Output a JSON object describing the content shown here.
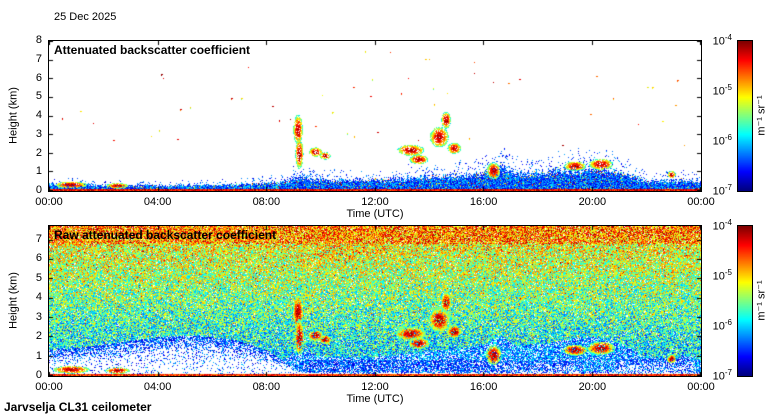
{
  "header": {
    "date": "25 Dec 2025"
  },
  "footer": {
    "station": "Jarvselja CL31 ceilometer"
  },
  "colorbar": {
    "base": "10",
    "exponents": [
      "-4",
      "-5",
      "-6",
      "-7"
    ],
    "units": "m⁻¹ sr⁻¹",
    "colormap": "jet",
    "scale": "log10",
    "value_range": [
      1e-07,
      0.0001
    ]
  },
  "chart_data": [
    {
      "type": "heatmap",
      "title": "Attenuated backscatter coefficient",
      "xlabel": "Time (UTC)",
      "ylabel": "Height (km)",
      "units": "m⁻¹ sr⁻¹",
      "colormap": "jet",
      "x_ticks": [
        "00:00",
        "04:00",
        "08:00",
        "12:00",
        "16:00",
        "20:00",
        "00:00"
      ],
      "x_range_hours": [
        0,
        24
      ],
      "y_ticks": [
        8,
        7,
        6,
        5,
        4,
        3,
        2,
        1,
        0
      ],
      "ylim_km": [
        0,
        8
      ],
      "features": {
        "seed": 42,
        "boundary_layer_top_km": [
          [
            0,
            0.4
          ],
          [
            1,
            0.35
          ],
          [
            2,
            0.3
          ],
          [
            3,
            0.3
          ],
          [
            4,
            0.3
          ],
          [
            5,
            0.3
          ],
          [
            6,
            0.3
          ],
          [
            7,
            0.35
          ],
          [
            8,
            0.4
          ],
          [
            8.6,
            0.5
          ],
          [
            9,
            0.7
          ],
          [
            9.4,
            0.8
          ],
          [
            10,
            0.6
          ],
          [
            11,
            0.6
          ],
          [
            12,
            0.6
          ],
          [
            13,
            0.7
          ],
          [
            14,
            0.8
          ],
          [
            15,
            0.85
          ],
          [
            16,
            1.0
          ],
          [
            16.6,
            1.3
          ],
          [
            17.2,
            0.95
          ],
          [
            18,
            1.0
          ],
          [
            19,
            1.15
          ],
          [
            20,
            1.25
          ],
          [
            20.7,
            1.15
          ],
          [
            21.3,
            0.9
          ],
          [
            22,
            0.55
          ],
          [
            23,
            0.55
          ],
          [
            23.5,
            0.6
          ],
          [
            24,
            0.45
          ]
        ],
        "cloud_echoes": [
          {
            "t": 0.8,
            "h": 0.35,
            "w": 1.2,
            "dh": 0.35
          },
          {
            "t": 2.5,
            "h": 0.3,
            "w": 0.8,
            "dh": 0.3
          },
          {
            "t": 9.15,
            "h": 3.3,
            "w": 0.35,
            "dh": 1.6
          },
          {
            "t": 9.2,
            "h": 2.0,
            "w": 0.3,
            "dh": 1.6
          },
          {
            "t": 9.8,
            "h": 2.1,
            "w": 0.5,
            "dh": 0.5
          },
          {
            "t": 10.15,
            "h": 1.9,
            "w": 0.4,
            "dh": 0.4
          },
          {
            "t": 13.3,
            "h": 2.2,
            "w": 1.0,
            "dh": 0.6
          },
          {
            "t": 13.6,
            "h": 1.7,
            "w": 0.7,
            "dh": 0.5
          },
          {
            "t": 14.35,
            "h": 2.9,
            "w": 0.7,
            "dh": 1.1
          },
          {
            "t": 14.6,
            "h": 3.8,
            "w": 0.35,
            "dh": 0.9
          },
          {
            "t": 14.9,
            "h": 2.3,
            "w": 0.5,
            "dh": 0.6
          },
          {
            "t": 16.35,
            "h": 1.1,
            "w": 0.5,
            "dh": 0.9
          },
          {
            "t": 19.35,
            "h": 1.35,
            "w": 0.8,
            "dh": 0.5
          },
          {
            "t": 20.3,
            "h": 1.45,
            "w": 0.9,
            "dh": 0.6
          },
          {
            "t": 22.9,
            "h": 0.9,
            "w": 0.3,
            "dh": 0.4
          }
        ],
        "sparse_high_dots": 55
      }
    },
    {
      "type": "heatmap",
      "title": "Raw attenuated backscatter coefficient",
      "xlabel": "Time (UTC)",
      "ylabel": "Height (km)",
      "units": "m⁻¹ sr⁻¹",
      "colormap": "jet",
      "x_ticks": [
        "00:00",
        "04:00",
        "08:00",
        "12:00",
        "16:00",
        "20:00",
        "00:00"
      ],
      "x_range_hours": [
        0,
        24
      ],
      "y_ticks": [
        7,
        6,
        5,
        4,
        3,
        2,
        1,
        0
      ],
      "ylim_km": [
        0,
        7.7
      ],
      "features": {
        "seed": 7,
        "noise_description": "dense speckle noise over full profile, apparent signal increasing with height",
        "white_low_signal_regions": [
          {
            "profile": [
              [
                0,
                1.4
              ],
              [
                1,
                1.5
              ],
              [
                2,
                1.7
              ],
              [
                3,
                1.9
              ],
              [
                4,
                2.1
              ],
              [
                5,
                2.2
              ],
              [
                6,
                2.1
              ],
              [
                7,
                1.9
              ],
              [
                8,
                1.4
              ],
              [
                8.8,
                0.6
              ],
              [
                9.2,
                0.2
              ]
            ],
            "strength": 0.9
          },
          {
            "t0": 16.4,
            "t1": 19.3,
            "top_km": 0.85,
            "strength": 0.55
          },
          {
            "t0": 20.8,
            "t1": 23.7,
            "top_km": 1.0,
            "strength": 0.6
          },
          {
            "t0": 9.2,
            "t1": 16.4,
            "top_km": 1.1,
            "strength": 0.3
          }
        ],
        "hot_patches": [
          {
            "t": 11,
            "h": 6.7,
            "w": 3.0,
            "dh": 1.6
          },
          {
            "t": 6,
            "h": 7.3,
            "w": 6.0,
            "dh": 0.8
          }
        ],
        "surface_line_top_km": 0.1
      }
    }
  ]
}
